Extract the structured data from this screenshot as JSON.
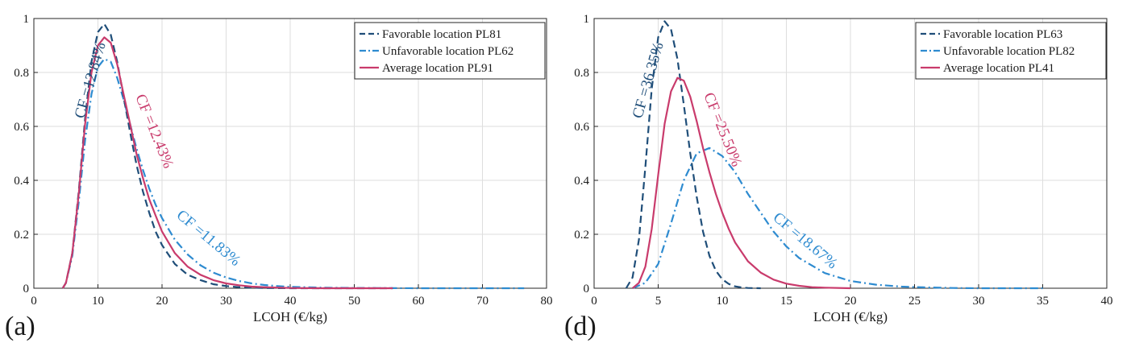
{
  "colors": {
    "favorable": "#1f4e79",
    "unfavorable": "#2e8bd0",
    "average": "#c93b6c",
    "grid": "#dedede",
    "axis": "#262626"
  },
  "chart_data": [
    {
      "type": "line",
      "panel_label": "(a)",
      "xlabel": "LCOH (€/kg)",
      "ylabel": "",
      "xlim": [
        0,
        80
      ],
      "ylim": [
        0,
        1
      ],
      "xticks": [
        "0",
        "10",
        "20",
        "30",
        "40",
        "50",
        "60",
        "70",
        "80"
      ],
      "yticks": [
        "0",
        "0.2",
        "0.4",
        "0.6",
        "0.8",
        "1"
      ],
      "grid": true,
      "legend_position": "top-right",
      "series": [
        {
          "key": "favorable",
          "name": "Favorable location PL81",
          "style": "dash",
          "x": [
            4.5,
            5,
            6,
            7,
            8,
            9,
            10,
            11,
            12,
            13,
            14,
            15,
            16,
            17,
            18,
            19,
            20,
            22,
            24,
            26,
            28,
            30,
            32,
            34,
            36,
            40,
            45,
            50,
            56
          ],
          "y": [
            0,
            0.02,
            0.13,
            0.36,
            0.63,
            0.84,
            0.95,
            0.98,
            0.94,
            0.84,
            0.71,
            0.58,
            0.46,
            0.36,
            0.28,
            0.21,
            0.16,
            0.09,
            0.05,
            0.03,
            0.015,
            0.008,
            0.004,
            0.002,
            0.001,
            0,
            0,
            0,
            0
          ]
        },
        {
          "key": "unfavorable",
          "name": "Unfavorable location PL62",
          "style": "dashdot",
          "x": [
            4.5,
            5,
            6,
            7,
            8,
            9,
            10,
            11,
            12,
            13,
            14,
            15,
            16,
            17,
            18,
            19,
            20,
            22,
            24,
            26,
            28,
            30,
            32,
            34,
            36,
            38,
            40,
            45,
            50,
            60,
            70,
            76.5
          ],
          "y": [
            0,
            0.02,
            0.12,
            0.32,
            0.55,
            0.72,
            0.82,
            0.85,
            0.84,
            0.78,
            0.7,
            0.61,
            0.52,
            0.44,
            0.37,
            0.31,
            0.26,
            0.18,
            0.125,
            0.085,
            0.058,
            0.04,
            0.027,
            0.018,
            0.012,
            0.008,
            0.005,
            0.002,
            0.001,
            0,
            0,
            0
          ]
        },
        {
          "key": "average",
          "name": "Average location PL91",
          "style": "solid",
          "x": [
            4.5,
            5,
            6,
            7,
            8,
            9,
            10,
            11,
            12,
            13,
            14,
            15,
            16,
            17,
            18,
            19,
            20,
            22,
            24,
            26,
            28,
            30,
            32,
            34,
            36,
            40,
            45,
            50,
            56
          ],
          "y": [
            0,
            0.02,
            0.13,
            0.35,
            0.61,
            0.8,
            0.9,
            0.93,
            0.91,
            0.83,
            0.72,
            0.61,
            0.5,
            0.41,
            0.33,
            0.27,
            0.21,
            0.13,
            0.08,
            0.05,
            0.03,
            0.018,
            0.011,
            0.006,
            0.004,
            0.001,
            0,
            0,
            0
          ]
        }
      ],
      "annotations": [
        {
          "key": "favorable",
          "text": "CF =12.84%"
        },
        {
          "key": "average",
          "text": "CF =12.43%"
        },
        {
          "key": "unfavorable",
          "text": "CF =11.83%"
        }
      ]
    },
    {
      "type": "line",
      "panel_label": "(d)",
      "xlabel": "LCOH (€/kg)",
      "ylabel": "",
      "xlim": [
        0,
        40
      ],
      "ylim": [
        0,
        1
      ],
      "xticks": [
        "0",
        "5",
        "10",
        "15",
        "20",
        "25",
        "30",
        "35",
        "40"
      ],
      "yticks": [
        "0",
        "0.2",
        "0.4",
        "0.6",
        "0.8",
        "1"
      ],
      "grid": true,
      "legend_position": "top-right",
      "series": [
        {
          "key": "favorable",
          "name": "Favorable location PL63",
          "style": "dash",
          "x": [
            2.5,
            3,
            3.5,
            4,
            4.5,
            5,
            5.5,
            6,
            6.5,
            7,
            7.5,
            8,
            8.5,
            9,
            9.5,
            10,
            10.5,
            11,
            11.5,
            12,
            13
          ],
          "y": [
            0,
            0.04,
            0.18,
            0.45,
            0.74,
            0.93,
            0.99,
            0.96,
            0.85,
            0.68,
            0.5,
            0.34,
            0.21,
            0.12,
            0.065,
            0.033,
            0.016,
            0.007,
            0.003,
            0.001,
            0
          ]
        },
        {
          "key": "unfavorable",
          "name": "Unfavorable location PL82",
          "style": "dashdot",
          "x": [
            3,
            4,
            5,
            6,
            7,
            8,
            9,
            10,
            11,
            12,
            13,
            14,
            15,
            16,
            18,
            20,
            22,
            24,
            26,
            28,
            30,
            32,
            35
          ],
          "y": [
            0,
            0.02,
            0.09,
            0.24,
            0.4,
            0.5,
            0.52,
            0.49,
            0.43,
            0.35,
            0.28,
            0.21,
            0.155,
            0.112,
            0.056,
            0.027,
            0.013,
            0.006,
            0.003,
            0.001,
            0,
            0,
            0
          ]
        },
        {
          "key": "average",
          "name": "Average location PL41",
          "style": "solid",
          "x": [
            3,
            3.5,
            4,
            4.5,
            5,
            5.5,
            6,
            6.5,
            7,
            7.5,
            8,
            8.5,
            9,
            9.5,
            10,
            10.5,
            11,
            12,
            13,
            14,
            15,
            16,
            17,
            18,
            20
          ],
          "y": [
            0,
            0.02,
            0.08,
            0.22,
            0.42,
            0.61,
            0.73,
            0.78,
            0.77,
            0.71,
            0.62,
            0.52,
            0.43,
            0.35,
            0.28,
            0.22,
            0.17,
            0.1,
            0.058,
            0.032,
            0.017,
            0.009,
            0.004,
            0.002,
            0
          ]
        }
      ],
      "annotations": [
        {
          "key": "favorable",
          "text": "CF =36.35%"
        },
        {
          "key": "average",
          "text": "CF =25.50%"
        },
        {
          "key": "unfavorable",
          "text": "CF =18.67%"
        }
      ]
    }
  ]
}
